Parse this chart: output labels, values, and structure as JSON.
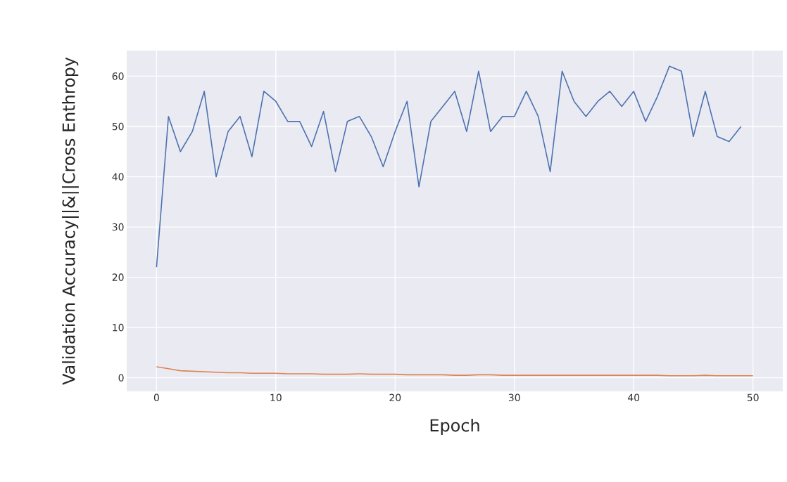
{
  "chart_data": {
    "type": "line",
    "xlabel": "Epoch",
    "ylabel": "Validation Accuracy||&||Cross Enthropy",
    "xlim": [
      -2.5,
      52.5
    ],
    "ylim": [
      -2.7,
      65.1
    ],
    "xticks": [
      0,
      10,
      20,
      30,
      40,
      50
    ],
    "yticks": [
      0,
      10,
      20,
      30,
      40,
      50,
      60
    ],
    "grid": true,
    "series": [
      {
        "color": "#4c72b0",
        "x": [
          0,
          1,
          2,
          3,
          4,
          5,
          6,
          7,
          8,
          9,
          10,
          11,
          12,
          13,
          14,
          15,
          16,
          17,
          18,
          19,
          20,
          21,
          22,
          23,
          24,
          25,
          26,
          27,
          28,
          29,
          30,
          31,
          32,
          33,
          34,
          35,
          36,
          37,
          38,
          39,
          40,
          41,
          42,
          43,
          44,
          45,
          46,
          47,
          48,
          49
        ],
        "values": [
          22,
          52,
          45,
          49,
          57,
          40,
          49,
          52,
          44,
          57,
          55,
          51,
          51,
          46,
          53,
          41,
          51,
          52,
          48,
          42,
          49,
          55,
          38,
          51,
          54,
          57,
          49,
          61,
          49,
          52,
          52,
          57,
          52,
          41,
          61,
          55,
          52,
          55,
          57,
          54,
          57,
          51,
          56,
          62,
          61,
          48,
          57,
          48,
          47,
          50
        ]
      },
      {
        "color": "#dd8452",
        "x": [
          0,
          1,
          2,
          3,
          4,
          5,
          6,
          7,
          8,
          9,
          10,
          11,
          12,
          13,
          14,
          15,
          16,
          17,
          18,
          19,
          20,
          21,
          22,
          23,
          24,
          25,
          26,
          27,
          28,
          29,
          30,
          31,
          32,
          33,
          34,
          35,
          36,
          37,
          38,
          39,
          40,
          41,
          42,
          43,
          44,
          45,
          46,
          47,
          48,
          49,
          50
        ],
        "values": [
          2.2,
          1.8,
          1.4,
          1.3,
          1.2,
          1.1,
          1.0,
          1.0,
          0.9,
          0.9,
          0.9,
          0.8,
          0.8,
          0.8,
          0.7,
          0.7,
          0.7,
          0.8,
          0.7,
          0.7,
          0.7,
          0.6,
          0.6,
          0.6,
          0.6,
          0.5,
          0.5,
          0.6,
          0.6,
          0.5,
          0.5,
          0.5,
          0.5,
          0.5,
          0.5,
          0.5,
          0.5,
          0.5,
          0.5,
          0.5,
          0.5,
          0.5,
          0.5,
          0.4,
          0.4,
          0.4,
          0.5,
          0.4,
          0.4,
          0.4,
          0.4
        ]
      }
    ]
  }
}
